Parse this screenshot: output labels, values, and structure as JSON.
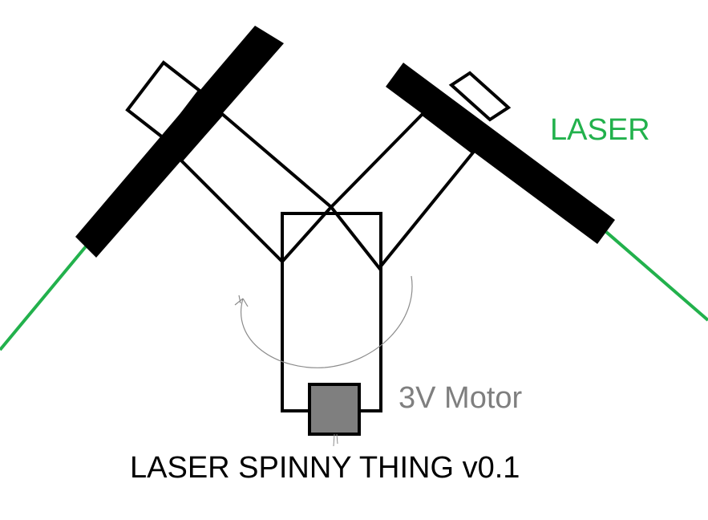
{
  "diagram": {
    "laser_label": "LASER",
    "motor_label": "3V Motor",
    "title": "LASER SPINNY THING v0.1"
  },
  "colors": {
    "laser_beam": "#22b14c",
    "laser_text": "#22b14c",
    "motor_text": "#7f7f7f",
    "motor_body": "#7f7f7f",
    "outline": "#000000",
    "rotation_arrow": "#8c8c8c"
  },
  "icons": {
    "rotation": "rotation-arrow-icon"
  }
}
